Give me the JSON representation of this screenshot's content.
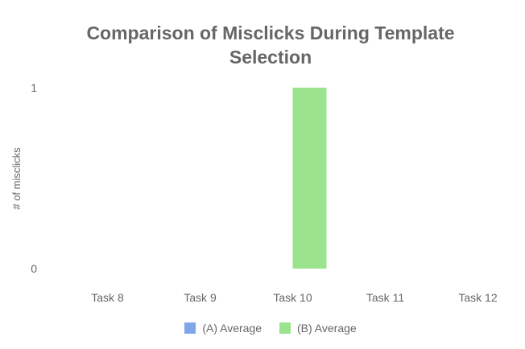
{
  "chart_data": {
    "type": "bar",
    "title": "Comparison of Misclicks During Template\nSelection",
    "xlabel": "",
    "ylabel": "# of misclicks",
    "categories": [
      "Task 8",
      "Task 9",
      "Task 10",
      "Task 11",
      "Task 12"
    ],
    "series": [
      {
        "name": "(A) Average",
        "values": [
          0,
          0,
          0,
          0,
          0
        ],
        "color": "#7ea6e8"
      },
      {
        "name": "(B) Average",
        "values": [
          0,
          0,
          1,
          0,
          0
        ],
        "color": "#9be38c"
      }
    ],
    "ylim": [
      0,
      1
    ],
    "yticks": [
      "0",
      "1"
    ],
    "grid": false,
    "legend_position": "bottom"
  }
}
